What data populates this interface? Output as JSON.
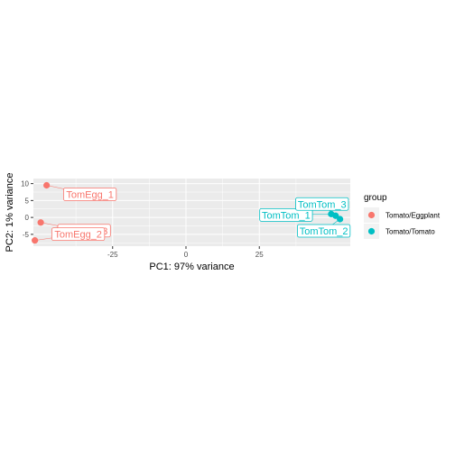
{
  "chart_data": {
    "type": "scatter",
    "title": "",
    "xlabel": "PC1: 97% variance",
    "ylabel": "PC2: 1% variance",
    "xlim": [
      -52,
      56
    ],
    "ylim": [
      -8.5,
      11.5
    ],
    "x_ticks": [
      -25,
      0,
      25
    ],
    "y_ticks": [
      -5,
      0,
      5,
      10
    ],
    "x_tick_labels": [
      "-25",
      "0",
      "25"
    ],
    "y_tick_labels": [
      "-5",
      "0",
      "5",
      "10"
    ],
    "grid": true,
    "legend": {
      "title": "group",
      "position": "right"
    },
    "series": [
      {
        "name": "Tomato/Eggplant",
        "color": "#F8766D",
        "points": [
          {
            "x": -47.5,
            "y": 9.5,
            "label": "TomEgg_1"
          },
          {
            "x": -49.5,
            "y": -1.5,
            "label": "TomEgg_3"
          },
          {
            "x": -51.5,
            "y": -6.8,
            "label": "TomEgg_2"
          }
        ]
      },
      {
        "name": "Tomato/Tomato",
        "color": "#00BFC4",
        "points": [
          {
            "x": 49.5,
            "y": 1.0,
            "label": "TomTom_1"
          },
          {
            "x": 51.0,
            "y": 0.5,
            "label": "TomTom_3"
          },
          {
            "x": 52.5,
            "y": -0.5,
            "label": "TomTom_2"
          }
        ]
      }
    ]
  }
}
